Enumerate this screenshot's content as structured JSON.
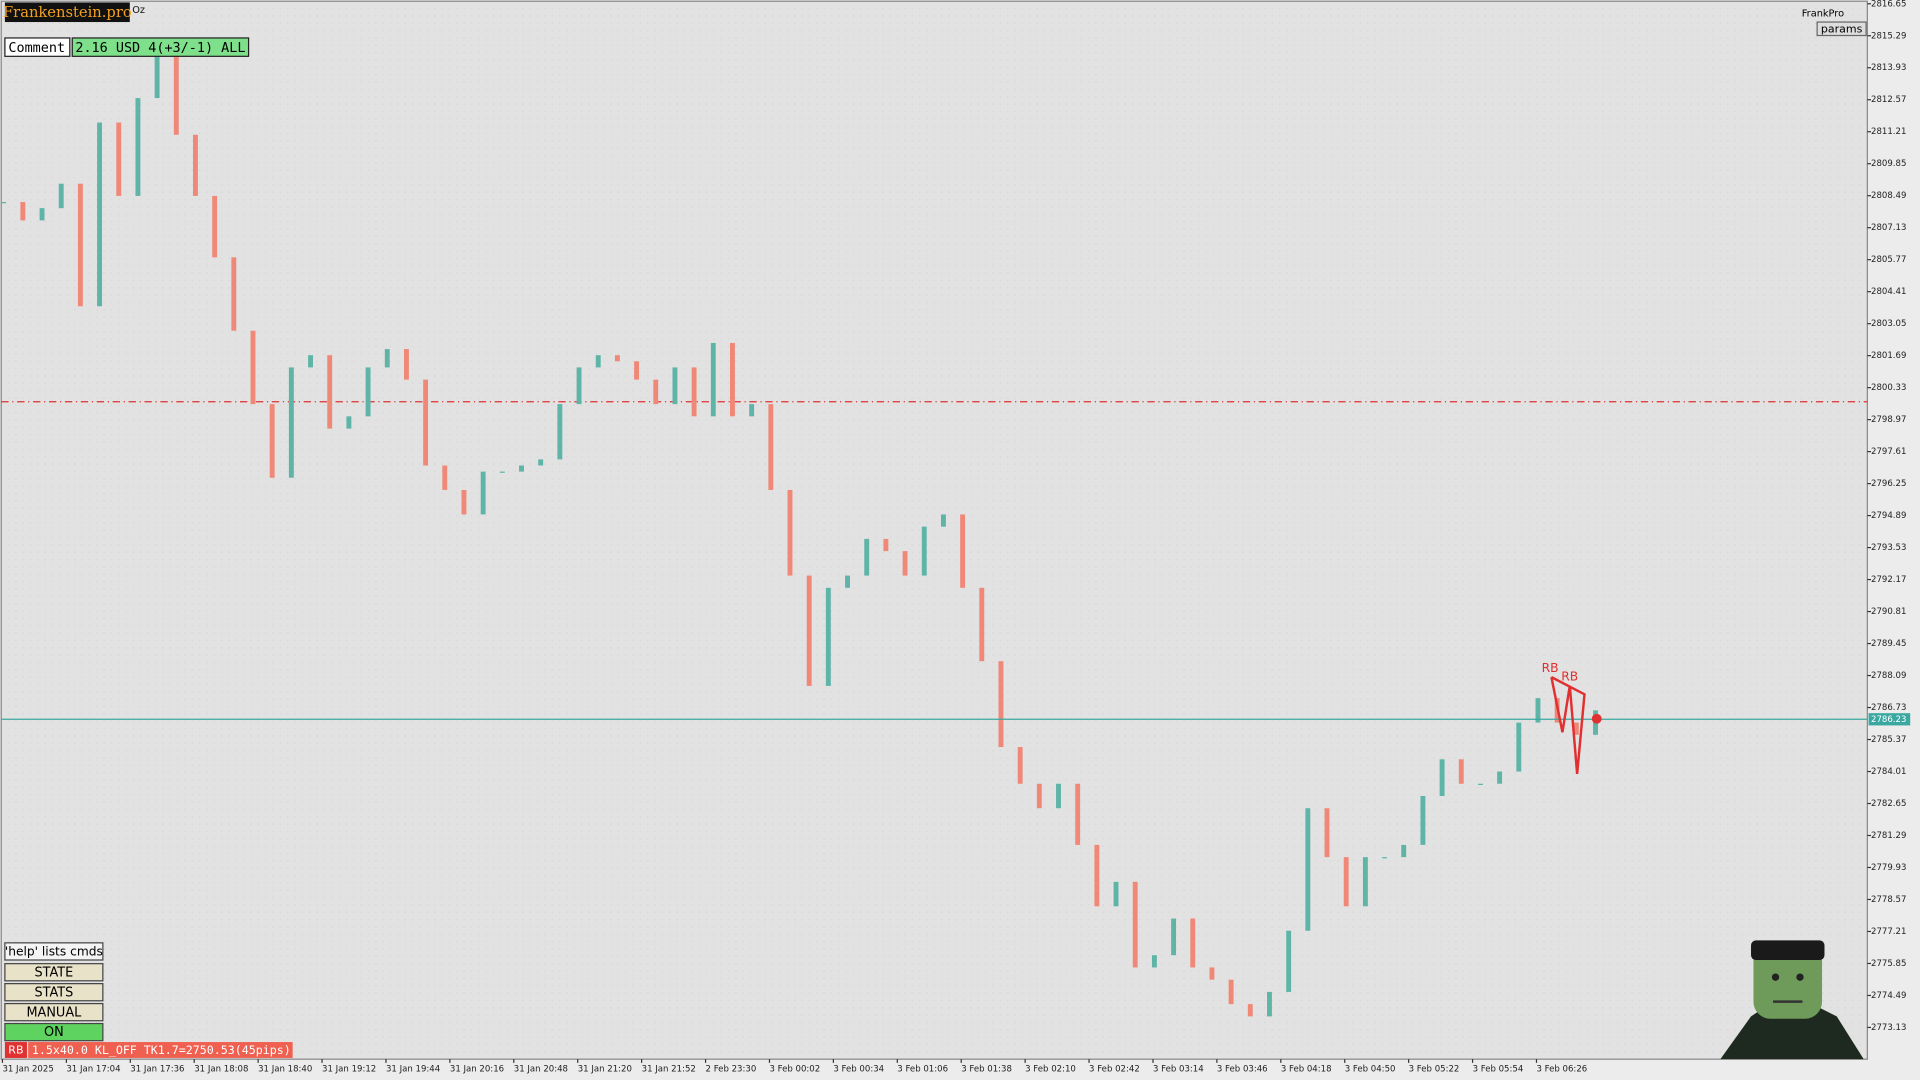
{
  "header": {
    "brand": "Frankenstein.pro",
    "symbol_tag": "Oz",
    "comment_label": "Comment",
    "comment_value": "2.16 USD 4(+3/-1) ALL",
    "account": "FrankPro",
    "params": "params"
  },
  "panel": {
    "help": "'help' lists cmds",
    "buttons": [
      "STATE",
      "STATS",
      "MANUAL",
      "ON"
    ],
    "status_tag": "RB",
    "status": "1.5x40.0 KL_OFF TK1.7=2750.53(45pips)"
  },
  "chart": {
    "ylim": [
      2771.78,
      2816.81
    ],
    "yticks": [
      2816.65,
      2815.29,
      2813.93,
      2812.57,
      2811.21,
      2809.85,
      2808.49,
      2807.13,
      2805.77,
      2804.41,
      2803.05,
      2801.69,
      2800.33,
      2798.97,
      2797.61,
      2796.25,
      2794.89,
      2793.53,
      2792.17,
      2790.81,
      2789.45,
      2788.09,
      2786.73,
      2785.37,
      2784.01,
      2782.65,
      2781.29,
      2779.93,
      2778.57,
      2777.21,
      2775.85,
      2774.49,
      2773.13
    ],
    "xlabels": [
      "31 Jan 2025",
      "31 Jan 17:04",
      "31 Jan 17:36",
      "31 Jan 18:08",
      "31 Jan 18:40",
      "31 Jan 19:12",
      "31 Jan 19:44",
      "31 Jan 20:16",
      "31 Jan 20:48",
      "31 Jan 21:20",
      "31 Jan 21:52",
      "2 Feb 23:30",
      "3 Feb 00:02",
      "3 Feb 00:34",
      "3 Feb 01:06",
      "3 Feb 01:38",
      "3 Feb 02:10",
      "3 Feb 02:42",
      "3 Feb 03:14",
      "3 Feb 03:46",
      "3 Feb 04:18",
      "3 Feb 04:50",
      "3 Feb 05:22",
      "3 Feb 05:54",
      "3 Feb 06:26"
    ],
    "closes": [
      2808.22,
      2807.44,
      2807.96,
      2809.0,
      2803.79,
      2811.6,
      2808.48,
      2812.64,
      2814.72,
      2811.08,
      2808.48,
      2805.87,
      2802.75,
      2799.63,
      2796.5,
      2801.19,
      2801.71,
      2798.59,
      2799.11,
      2801.19,
      2801.97,
      2800.67,
      2797.02,
      2795.98,
      2794.94,
      2796.76,
      2796.76,
      2797.02,
      2797.28,
      2799.63,
      2801.19,
      2801.71,
      2801.45,
      2800.67,
      2799.63,
      2801.19,
      2799.11,
      2802.23,
      2799.11,
      2799.63,
      2795.98,
      2792.34,
      2787.65,
      2791.82,
      2792.34,
      2793.9,
      2793.38,
      2792.34,
      2794.42,
      2794.94,
      2791.82,
      2788.7,
      2785.05,
      2783.49,
      2782.45,
      2783.49,
      2780.89,
      2778.28,
      2779.32,
      2775.68,
      2776.2,
      2777.76,
      2775.68,
      2775.16,
      2774.12,
      2773.6,
      2774.64,
      2777.24,
      2782.45,
      2780.37,
      2778.28,
      2780.37,
      2780.37,
      2780.89,
      2782.97,
      2784.53,
      2783.49,
      2783.49,
      2784.01,
      2786.09,
      2787.13,
      2786.09,
      2785.57,
      2786.61
    ],
    "up_color": "#5fb4a8",
    "down_color": "#f08878",
    "current_price": 2786.23,
    "level": 2799.73,
    "annotations": [
      "RB",
      "RB"
    ]
  }
}
